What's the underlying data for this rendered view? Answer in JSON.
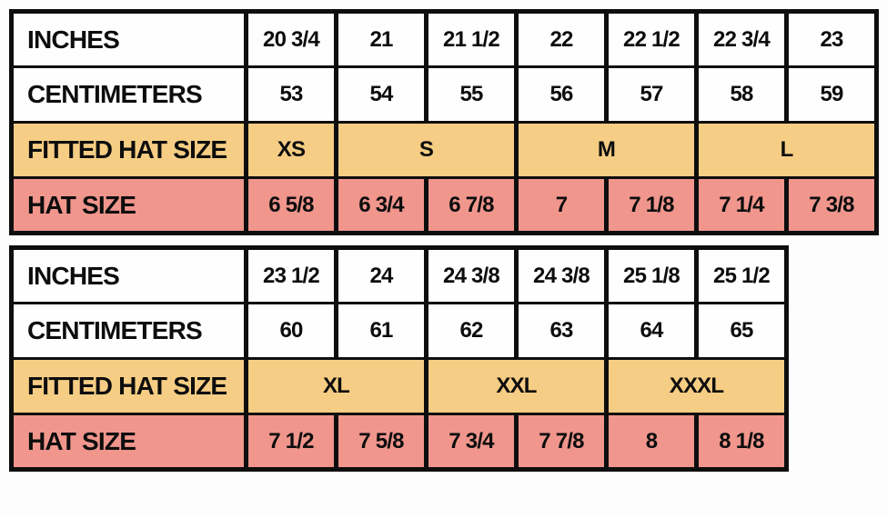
{
  "page": {
    "background": "#fdfdfd"
  },
  "colors": {
    "white_row": "#fefefe",
    "fitted_hat_size_row": "#f6cd84",
    "hat_size_row": "#f0968d",
    "border": "#0e0e0e",
    "text": "#0d0d0d"
  },
  "chart_data": [
    {
      "type": "table",
      "name": "hat-size-chart-small-to-large",
      "columns": 7,
      "rows": [
        {
          "label": "INCHES",
          "style": "white",
          "cells": [
            {
              "text": "20 3/4",
              "span": 1
            },
            {
              "text": "21",
              "span": 1
            },
            {
              "text": "21 1/2",
              "span": 1
            },
            {
              "text": "22",
              "span": 1
            },
            {
              "text": "22 1/2",
              "span": 1
            },
            {
              "text": "22 3/4",
              "span": 1
            },
            {
              "text": "23",
              "span": 1
            }
          ]
        },
        {
          "label": "CENTIMETERS",
          "style": "white",
          "cells": [
            {
              "text": "53",
              "span": 1
            },
            {
              "text": "54",
              "span": 1
            },
            {
              "text": "55",
              "span": 1
            },
            {
              "text": "56",
              "span": 1
            },
            {
              "text": "57",
              "span": 1
            },
            {
              "text": "58",
              "span": 1
            },
            {
              "text": "59",
              "span": 1
            }
          ]
        },
        {
          "label": "FITTED HAT SIZE",
          "style": "yellow",
          "cells": [
            {
              "text": "XS",
              "span": 1
            },
            {
              "text": "S",
              "span": 2
            },
            {
              "text": "M",
              "span": 2
            },
            {
              "text": "L",
              "span": 2
            }
          ]
        },
        {
          "label": "HAT SIZE",
          "style": "pink",
          "cells": [
            {
              "text": "6 5/8",
              "span": 1
            },
            {
              "text": "6 3/4",
              "span": 1
            },
            {
              "text": "6 7/8",
              "span": 1
            },
            {
              "text": "7",
              "span": 1
            },
            {
              "text": "7 1/8",
              "span": 1
            },
            {
              "text": "7 1/4",
              "span": 1
            },
            {
              "text": "7 3/8",
              "span": 1
            }
          ]
        }
      ]
    },
    {
      "type": "table",
      "name": "hat-size-chart-xl-to-xxxl",
      "columns": 6,
      "rows": [
        {
          "label": "INCHES",
          "style": "white",
          "cells": [
            {
              "text": "23 1/2",
              "span": 1
            },
            {
              "text": "24",
              "span": 1
            },
            {
              "text": "24 3/8",
              "span": 1
            },
            {
              "text": "24 3/8",
              "span": 1
            },
            {
              "text": "25 1/8",
              "span": 1
            },
            {
              "text": "25 1/2",
              "span": 1
            }
          ]
        },
        {
          "label": "CENTIMETERS",
          "style": "white",
          "cells": [
            {
              "text": "60",
              "span": 1
            },
            {
              "text": "61",
              "span": 1
            },
            {
              "text": "62",
              "span": 1
            },
            {
              "text": "63",
              "span": 1
            },
            {
              "text": "64",
              "span": 1
            },
            {
              "text": "65",
              "span": 1
            }
          ]
        },
        {
          "label": "FITTED HAT SIZE",
          "style": "yellow",
          "cells": [
            {
              "text": "XL",
              "span": 2
            },
            {
              "text": "XXL",
              "span": 2
            },
            {
              "text": "XXXL",
              "span": 2
            }
          ]
        },
        {
          "label": "HAT SIZE",
          "style": "pink",
          "cells": [
            {
              "text": "7 1/2",
              "span": 1
            },
            {
              "text": "7 5/8",
              "span": 1
            },
            {
              "text": "7 3/4",
              "span": 1
            },
            {
              "text": "7 7/8",
              "span": 1
            },
            {
              "text": "8",
              "span": 1
            },
            {
              "text": "8 1/8",
              "span": 1
            }
          ]
        }
      ]
    }
  ]
}
